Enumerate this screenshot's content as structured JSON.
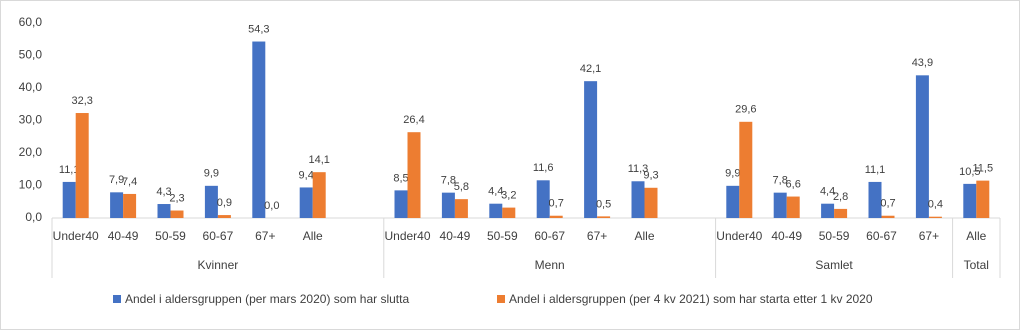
{
  "chart_data": {
    "type": "bar",
    "groups": [
      {
        "label": "Kvinner",
        "categories": [
          "Under40",
          "40-49",
          "50-59",
          "60-67",
          "67+",
          "Alle",
          null
        ]
      },
      {
        "label": "Menn",
        "categories": [
          "Under40",
          "40-49",
          "50-59",
          "60-67",
          "67+",
          "Alle",
          null
        ]
      },
      {
        "label": "Samlet",
        "categories": [
          "Under40",
          "40-49",
          "50-59",
          "60-67",
          "67+"
        ]
      },
      {
        "label": "Total",
        "categories": [
          "Alle"
        ]
      }
    ],
    "series": [
      {
        "name": "Andel i aldersgruppen (per mars 2020) som har slutta",
        "color": "#4472c4",
        "values": [
          11.1,
          7.9,
          4.3,
          9.9,
          54.3,
          9.4,
          null,
          8.5,
          7.8,
          4.4,
          11.6,
          42.1,
          11.3,
          null,
          9.9,
          7.8,
          4.4,
          11.1,
          43.9,
          10.5
        ],
        "value_labels": [
          "11,1",
          "7,9",
          "4,3",
          "9,9",
          "54,3",
          "9,4",
          null,
          "8,5",
          "7,8",
          "4,4",
          "11,6",
          "42,1",
          "11,3",
          null,
          "9,9",
          "7,8",
          "4,4",
          "11,1",
          "43,9",
          "10,5"
        ]
      },
      {
        "name": "Andel i aldersgruppen (per 4 kv 2021) som har starta etter 1 kv 2020",
        "color": "#ed7d31",
        "values": [
          32.3,
          7.4,
          2.3,
          0.9,
          0.0,
          14.1,
          null,
          26.4,
          5.8,
          3.2,
          0.7,
          0.5,
          9.3,
          null,
          29.6,
          6.6,
          2.8,
          0.7,
          0.4,
          11.5
        ],
        "value_labels": [
          "32,3",
          "7,4",
          "2,3",
          "0,9",
          "0,0",
          "14,1",
          null,
          "26,4",
          "5,8",
          "3,2",
          "0,7",
          "0,5",
          "9,3",
          null,
          "29,6",
          "6,6",
          "2,8",
          "0,7",
          "0,4",
          "11,5"
        ]
      }
    ],
    "ylim": [
      0,
      60
    ],
    "yticks": [
      {
        "value": 0,
        "label": "0,0"
      },
      {
        "value": 10,
        "label": "10,0"
      },
      {
        "value": 20,
        "label": "20,0"
      },
      {
        "value": 30,
        "label": "30,0"
      },
      {
        "value": 40,
        "label": "40,0"
      },
      {
        "value": 50,
        "label": "50,0"
      },
      {
        "value": 60,
        "label": "60,0"
      }
    ],
    "legend": "bottom"
  }
}
